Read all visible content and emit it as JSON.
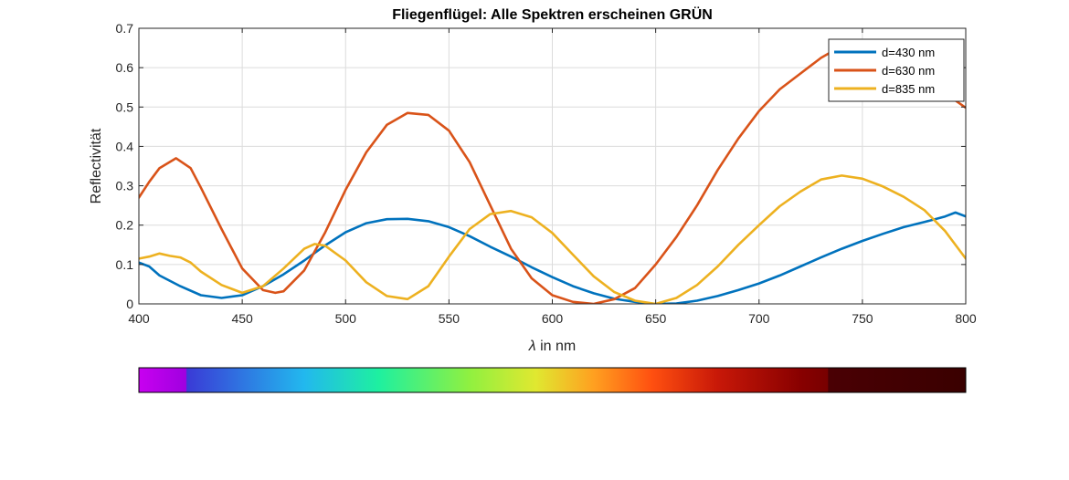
{
  "chart_data": {
    "type": "line",
    "title": "Fliegenflügel: Alle Spektren erscheinen GRÜN",
    "xlabel_symbol": "λ",
    "xlabel_rest": " in nm",
    "ylabel": "Reflectivität",
    "xlim": [
      400,
      800
    ],
    "ylim": [
      0,
      0.7
    ],
    "xticks": [
      400,
      450,
      500,
      550,
      600,
      650,
      700,
      750,
      800
    ],
    "yticks": [
      0,
      0.1,
      0.2,
      0.3,
      0.4,
      0.5,
      0.6,
      0.7
    ],
    "xtick_labels": [
      "400",
      "450",
      "500",
      "550",
      "600",
      "650",
      "700",
      "750",
      "800"
    ],
    "ytick_labels": [
      "0",
      "0.1",
      "0.2",
      "0.3",
      "0.4",
      "0.5",
      "0.6",
      "0.7"
    ],
    "grid": true,
    "legend_position": "top-right",
    "series": [
      {
        "name": "d=430 nm",
        "color": "#0072BD",
        "points": [
          [
            400,
            0.105
          ],
          [
            405,
            0.095
          ],
          [
            410,
            0.072
          ],
          [
            420,
            0.045
          ],
          [
            430,
            0.022
          ],
          [
            440,
            0.015
          ],
          [
            450,
            0.022
          ],
          [
            460,
            0.045
          ],
          [
            470,
            0.075
          ],
          [
            480,
            0.11
          ],
          [
            490,
            0.148
          ],
          [
            500,
            0.182
          ],
          [
            510,
            0.205
          ],
          [
            520,
            0.215
          ],
          [
            530,
            0.216
          ],
          [
            540,
            0.21
          ],
          [
            550,
            0.195
          ],
          [
            560,
            0.172
          ],
          [
            570,
            0.145
          ],
          [
            580,
            0.12
          ],
          [
            590,
            0.093
          ],
          [
            600,
            0.068
          ],
          [
            610,
            0.045
          ],
          [
            620,
            0.027
          ],
          [
            630,
            0.013
          ],
          [
            640,
            0.005
          ],
          [
            650,
            0.0
          ],
          [
            660,
            0.001
          ],
          [
            670,
            0.008
          ],
          [
            680,
            0.02
          ],
          [
            690,
            0.035
          ],
          [
            700,
            0.052
          ],
          [
            710,
            0.072
          ],
          [
            720,
            0.095
          ],
          [
            730,
            0.118
          ],
          [
            740,
            0.14
          ],
          [
            750,
            0.16
          ],
          [
            760,
            0.178
          ],
          [
            770,
            0.195
          ],
          [
            780,
            0.208
          ],
          [
            790,
            0.222
          ],
          [
            795,
            0.232
          ],
          [
            800,
            0.222
          ]
        ]
      },
      {
        "name": "d=630 nm",
        "color": "#D95319",
        "points": [
          [
            400,
            0.27
          ],
          [
            405,
            0.31
          ],
          [
            410,
            0.345
          ],
          [
            418,
            0.37
          ],
          [
            425,
            0.345
          ],
          [
            430,
            0.295
          ],
          [
            440,
            0.19
          ],
          [
            450,
            0.09
          ],
          [
            460,
            0.035
          ],
          [
            466,
            0.028
          ],
          [
            470,
            0.032
          ],
          [
            480,
            0.085
          ],
          [
            490,
            0.18
          ],
          [
            500,
            0.29
          ],
          [
            510,
            0.385
          ],
          [
            520,
            0.455
          ],
          [
            530,
            0.485
          ],
          [
            540,
            0.48
          ],
          [
            550,
            0.44
          ],
          [
            560,
            0.36
          ],
          [
            570,
            0.25
          ],
          [
            580,
            0.14
          ],
          [
            590,
            0.065
          ],
          [
            600,
            0.022
          ],
          [
            610,
            0.005
          ],
          [
            620,
            0.0
          ],
          [
            630,
            0.012
          ],
          [
            640,
            0.04
          ],
          [
            650,
            0.1
          ],
          [
            660,
            0.17
          ],
          [
            670,
            0.25
          ],
          [
            680,
            0.34
          ],
          [
            690,
            0.42
          ],
          [
            700,
            0.49
          ],
          [
            710,
            0.545
          ],
          [
            720,
            0.585
          ],
          [
            730,
            0.625
          ],
          [
            740,
            0.655
          ],
          [
            750,
            0.66
          ],
          [
            760,
            0.645
          ],
          [
            770,
            0.615
          ],
          [
            780,
            0.575
          ],
          [
            790,
            0.535
          ],
          [
            800,
            0.498
          ]
        ]
      },
      {
        "name": "d=835 nm",
        "color": "#EDB120",
        "points": [
          [
            400,
            0.115
          ],
          [
            405,
            0.12
          ],
          [
            410,
            0.128
          ],
          [
            415,
            0.122
          ],
          [
            420,
            0.118
          ],
          [
            425,
            0.105
          ],
          [
            430,
            0.082
          ],
          [
            440,
            0.048
          ],
          [
            450,
            0.028
          ],
          [
            460,
            0.045
          ],
          [
            470,
            0.09
          ],
          [
            480,
            0.14
          ],
          [
            485,
            0.152
          ],
          [
            490,
            0.148
          ],
          [
            500,
            0.11
          ],
          [
            510,
            0.055
          ],
          [
            520,
            0.02
          ],
          [
            530,
            0.012
          ],
          [
            540,
            0.045
          ],
          [
            550,
            0.12
          ],
          [
            560,
            0.19
          ],
          [
            570,
            0.228
          ],
          [
            580,
            0.236
          ],
          [
            590,
            0.22
          ],
          [
            600,
            0.18
          ],
          [
            610,
            0.125
          ],
          [
            620,
            0.07
          ],
          [
            630,
            0.03
          ],
          [
            640,
            0.008
          ],
          [
            650,
            0.0
          ],
          [
            660,
            0.015
          ],
          [
            670,
            0.048
          ],
          [
            680,
            0.095
          ],
          [
            690,
            0.15
          ],
          [
            700,
            0.2
          ],
          [
            710,
            0.248
          ],
          [
            720,
            0.285
          ],
          [
            730,
            0.316
          ],
          [
            740,
            0.326
          ],
          [
            750,
            0.318
          ],
          [
            760,
            0.298
          ],
          [
            770,
            0.272
          ],
          [
            780,
            0.238
          ],
          [
            790,
            0.185
          ],
          [
            800,
            0.115
          ]
        ]
      }
    ],
    "spectrum_bar": {
      "stops": [
        {
          "offset": 0.0,
          "color": "#c800f0"
        },
        {
          "offset": 0.057,
          "color": "#a000e0"
        },
        {
          "offset": 0.058,
          "color": "#3a3ad6"
        },
        {
          "offset": 0.2,
          "color": "#22b8ee"
        },
        {
          "offset": 0.29,
          "color": "#1ef0a0"
        },
        {
          "offset": 0.4,
          "color": "#90f040"
        },
        {
          "offset": 0.48,
          "color": "#e0e830"
        },
        {
          "offset": 0.55,
          "color": "#ffa020"
        },
        {
          "offset": 0.62,
          "color": "#ff5010"
        },
        {
          "offset": 0.7,
          "color": "#c81808"
        },
        {
          "offset": 0.8,
          "color": "#880000"
        },
        {
          "offset": 0.833,
          "color": "#780000"
        },
        {
          "offset": 0.834,
          "color": "#4a0004"
        },
        {
          "offset": 1.0,
          "color": "#3a0000"
        }
      ]
    }
  }
}
